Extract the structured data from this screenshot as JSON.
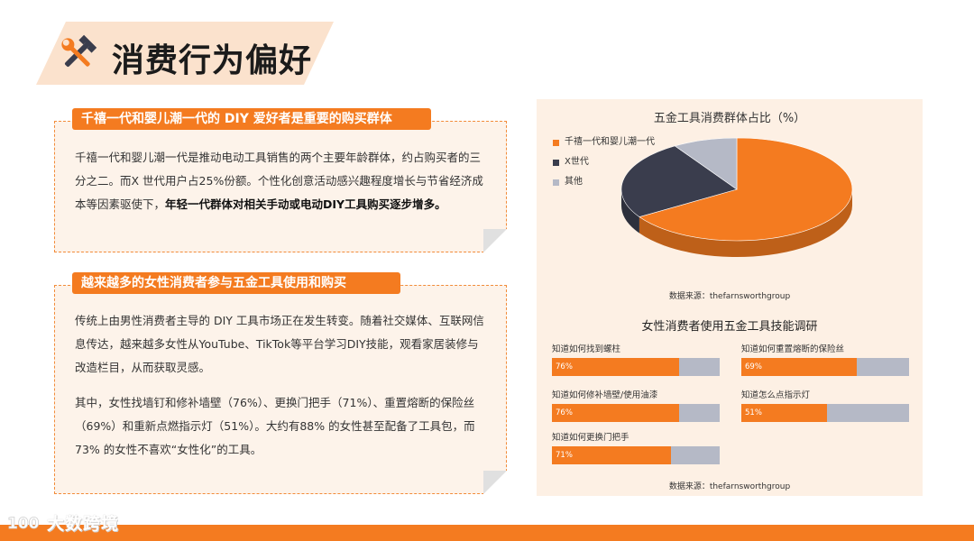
{
  "header": {
    "title": "消费行为偏好"
  },
  "section1": {
    "title": "千禧一代和婴儿潮一代的 DIY 爱好者是重要的购买群体",
    "text_plain": "千禧一代和婴儿潮一代是推动电动工具销售的两个主要年龄群体，约占购买者的三分之二。而X 世代用户占25%份额。个性化创意活动感兴趣程度增长与节省经济成本等因素驱使下，",
    "text_bold": "年轻一代群体对相关手动或电动DIY工具购买逐步增多。"
  },
  "section2": {
    "title": "越来越多的女性消费者参与五金工具使用和购买",
    "para1": "传统上由男性消费者主导的 DIY 工具市场正在发生转变。随着社交媒体、互联网信息传达，越来越多女性从YouTube、TikTok等平台学习DIY技能，观看家居装修与改造栏目，从而获取灵感。",
    "para2": "其中，女性找墙钉和修补墙壁（76%）、更换门把手（71%）、重置熔断的保险丝（69%）和重新点燃指示灯（51%）。大约有88% 的女性甚至配备了工具包，而73% 的女性不喜欢“女性化”的工具。"
  },
  "pie": {
    "source": "数据来源：thefarnsworthgroup"
  },
  "skills": {
    "source": "数据来源：thefarnsworthgroup"
  },
  "footer": {
    "brand": "大数跨境"
  },
  "colors": {
    "accent": "#f47b20",
    "dark": "#3a3d4d",
    "gray": "#b5b9c6",
    "panel": "#fdf3ea"
  },
  "chart_data": [
    {
      "type": "pie",
      "title": "五金工具消费群体占比（%）",
      "categories": [
        "千禧一代和婴儿潮一代",
        "X世代",
        "其他"
      ],
      "values": [
        66,
        25,
        9
      ],
      "colors": [
        "#f47b20",
        "#3a3d4d",
        "#b5b9c6"
      ],
      "legend": "left",
      "style": "3d"
    },
    {
      "type": "bar",
      "title": "女性消费者使用五金工具技能调研",
      "categories": [
        "知道如何找到螺柱",
        "知道如何重置熔断的保险丝",
        "知道如何修补墙壁/使用油漆",
        "知道怎么点指示灯",
        "知道如何更换门把手"
      ],
      "values": [
        76,
        69,
        76,
        51,
        71
      ],
      "labels": [
        "76%",
        "69%",
        "76%",
        "51%",
        "71%"
      ],
      "ylim": [
        0,
        100
      ]
    }
  ]
}
